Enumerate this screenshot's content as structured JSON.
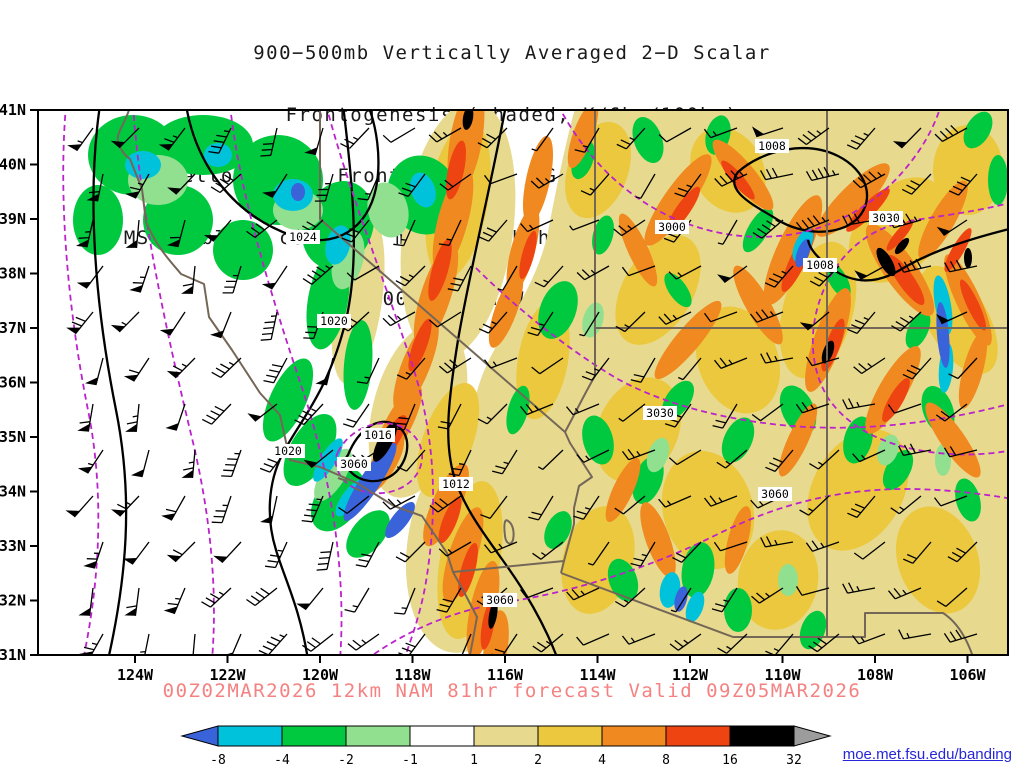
{
  "title": {
    "line1": "900−500mb Vertically Averaged 2−D Scalar",
    "line2": "Frontogenesis (shaded, K/6hr/100km)",
    "line3": "Yellow/Red = Frontogenesis;  Green/Blue = Frontolysis",
    "line4": "MSLP (black contour, mb), 700mb height (purple contour, m) &",
    "line5": "900−500mb Mean Wind (barb, kt)"
  },
  "caption": "00Z02MAR2026 12km NAM 81hr forecast Valid 09Z05MAR2026",
  "link": "moe.met.fsu.edu/banding",
  "axes": {
    "lat_ticks": [
      "41N",
      "40N",
      "39N",
      "38N",
      "37N",
      "36N",
      "35N",
      "34N",
      "33N",
      "32N",
      "31N"
    ],
    "lon_ticks": [
      "124W",
      "122W",
      "120W",
      "118W",
      "116W",
      "114W",
      "112W",
      "110W",
      "108W",
      "106W"
    ]
  },
  "contours": {
    "mslp_labels": [
      "1024",
      "1020",
      "1020",
      "1016",
      "1012",
      "1008",
      "1008"
    ],
    "height_labels": [
      "3000",
      "3030",
      "3030",
      "3060",
      "3060",
      "3060"
    ]
  },
  "colorbar": {
    "tick_labels": [
      "-8",
      "-4",
      "-2",
      "-1",
      "1",
      "2",
      "4",
      "8",
      "16",
      "32"
    ],
    "colors": [
      "#3a62d9",
      "#00c3db",
      "#00c940",
      "#90e090",
      "#ffffff",
      "#e7da8e",
      "#ecc83e",
      "#f0891f",
      "#ee4412",
      "#000000",
      "#9c9c9c"
    ]
  },
  "chart_data": {
    "type": "heatmap",
    "title": "900-500mb Vertically Averaged 2-D Scalar Frontogenesis",
    "shading_units": "K/6hr/100km",
    "shading_levels": [
      -8,
      -4,
      -2,
      -1,
      1,
      2,
      4,
      8,
      16,
      32
    ],
    "shading_colors": [
      "#3a62d9",
      "#00c3db",
      "#00c940",
      "#90e090",
      "#ffffff",
      "#e7da8e",
      "#ecc83e",
      "#f0891f",
      "#ee4412",
      "#000000",
      "#9c9c9c"
    ],
    "positive_meaning": "Yellow/Red = Frontogenesis",
    "negative_meaning": "Green/Blue = Frontolysis",
    "x_tick_labels": [
      "124W",
      "122W",
      "120W",
      "118W",
      "116W",
      "114W",
      "112W",
      "110W",
      "108W",
      "106W"
    ],
    "y_tick_labels": [
      "41N",
      "40N",
      "39N",
      "38N",
      "37N",
      "36N",
      "35N",
      "34N",
      "33N",
      "32N",
      "31N"
    ],
    "mslp_contour_values_mb": [
      1008,
      1012,
      1016,
      1020,
      1024
    ],
    "height_contour_values_m": [
      3000,
      3030,
      3060
    ],
    "wind_field": "900-500mb Mean Wind (barb, kt)",
    "model": "12km NAM",
    "init_time": "00Z02MAR2026",
    "forecast_hour": "81hr",
    "valid_time": "09Z05MAR2026",
    "legend_position": "bottom"
  }
}
